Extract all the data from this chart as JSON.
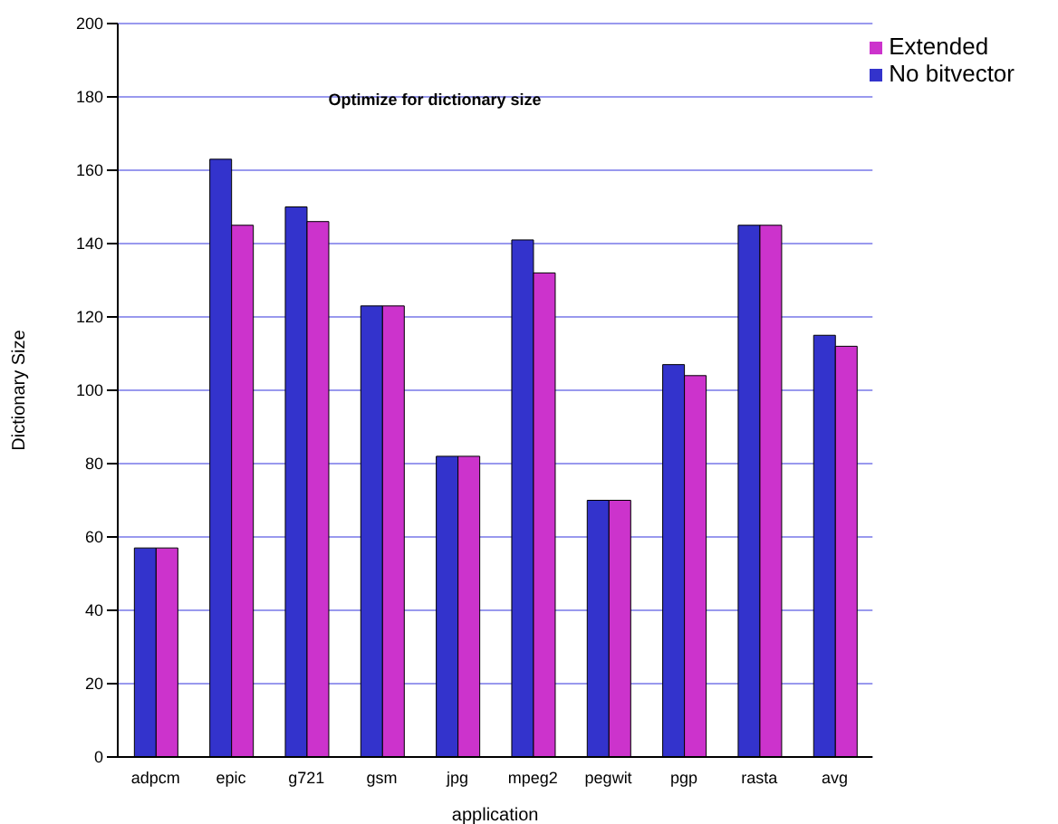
{
  "chart_data": {
    "type": "bar",
    "title": "Optimize for dictionary size",
    "xlabel": "application",
    "ylabel": "Dictionary Size",
    "categories": [
      "adpcm",
      "epic",
      "g721",
      "gsm",
      "jpg",
      "mpeg2",
      "pegwit",
      "pgp",
      "rasta",
      "avg"
    ],
    "series": [
      {
        "name": "No bitvector",
        "color": "#3333cc",
        "values": [
          57,
          163,
          150,
          123,
          82,
          141,
          70,
          107,
          145,
          115
        ]
      },
      {
        "name": "Extended",
        "color": "#cc33cc",
        "values": [
          57,
          145,
          146,
          123,
          82,
          132,
          70,
          104,
          145,
          112
        ]
      }
    ],
    "ylim": [
      0,
      200
    ],
    "yticks": [
      0,
      20,
      40,
      60,
      80,
      100,
      120,
      140,
      160,
      180,
      200
    ],
    "grid": "y",
    "legend": "top right"
  }
}
